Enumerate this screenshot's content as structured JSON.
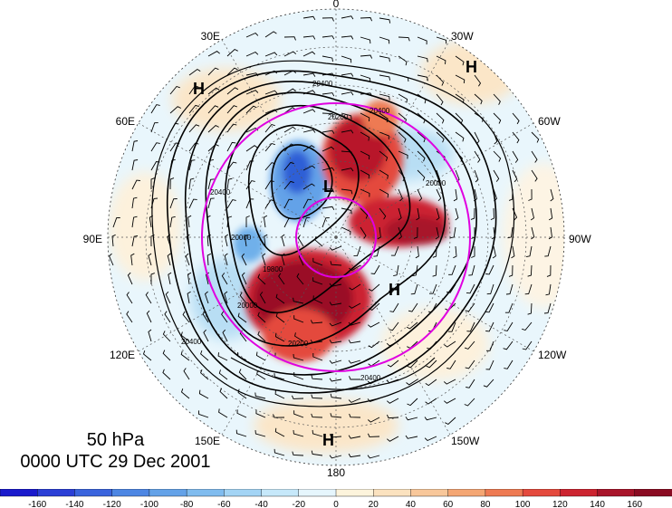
{
  "title": {
    "level": "50 hPa",
    "time": "0000 UTC 29 Dec 2001"
  },
  "longitude_labels": [
    {
      "text": "0",
      "angle": 0
    },
    {
      "text": "30W",
      "angle": 30
    },
    {
      "text": "60W",
      "angle": 60
    },
    {
      "text": "90W",
      "angle": 90
    },
    {
      "text": "120W",
      "angle": 120
    },
    {
      "text": "150W",
      "angle": 150
    },
    {
      "text": "180",
      "angle": 180
    },
    {
      "text": "150E",
      "angle": 210
    },
    {
      "text": "120E",
      "angle": 240
    },
    {
      "text": "90E",
      "angle": 270
    },
    {
      "text": "60E",
      "angle": 300
    },
    {
      "text": "30E",
      "angle": 330
    }
  ],
  "pressure_centers": [
    {
      "text": "H",
      "id": "h-30w"
    },
    {
      "text": "H",
      "id": "h-60e"
    },
    {
      "text": "L",
      "id": "l-center"
    },
    {
      "text": "H",
      "id": "h-120w"
    },
    {
      "text": "H",
      "id": "h-180"
    }
  ],
  "contour_labels": [
    "20400",
    "20400",
    "20200",
    "20000",
    "20400",
    "20000",
    "20400",
    "19800",
    "20200",
    "20000",
    "20400"
  ],
  "colorbar": {
    "ticks": [
      "-160",
      "-140",
      "-120",
      "-100",
      "-80",
      "-60",
      "-40",
      "-20",
      "0",
      "20",
      "40",
      "60",
      "80",
      "100",
      "120",
      "140",
      "160"
    ],
    "colors": [
      "#1a1acc",
      "#2b3fd6",
      "#3a64dd",
      "#4d86e3",
      "#64a2e8",
      "#80bcef",
      "#a3d4f5",
      "#c6e8fa",
      "#e6f6fd",
      "#fdf4dc",
      "#fbe2bf",
      "#f8c79a",
      "#f4a673",
      "#ee7a53",
      "#e44a3d",
      "#cc2430",
      "#a8142a",
      "#8a0c22"
    ]
  },
  "colors": {
    "ring": "#e000e0",
    "contour": "#000000",
    "background": "#ffffff"
  }
}
